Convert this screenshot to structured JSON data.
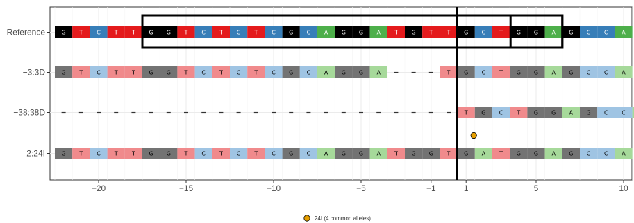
{
  "chart_data": {
    "type": "sequence-alignment",
    "rows": [
      {
        "label": "Reference",
        "seq": "GTCTTGGTCTCTCGCAGGATGTTGCTGGAGCCA",
        "faded": false
      },
      {
        "label": "−3:3D",
        "seq": "GTCTTGGTCTCTCGCAGGA---TGCTGGAGCCA",
        "faded": true
      },
      {
        "label": "−38:38D",
        "seq": "-----------------------TGCTGGAGCCA",
        "faded": true
      },
      {
        "label": "2:24I",
        "seq": "GTCTTGGTCTCTCGCAGGATGGTGATGGAGCCA",
        "faded": true
      }
    ],
    "x_start": -22,
    "x_ticks": [
      -20,
      -15,
      -10,
      -5,
      -1,
      1,
      5,
      10
    ],
    "x_tick_labels": [
      "−20",
      "−15",
      "−10",
      "−5",
      "−1",
      "1",
      "5",
      "10"
    ],
    "cut_site": 0,
    "guide_box": {
      "from": -17,
      "to": 6
    },
    "pam_box": {
      "from": 4,
      "to": 6
    },
    "insertion_marker": {
      "row": "2:24I",
      "x": 0.5,
      "color": "#E69F00"
    },
    "colors": {
      "A": "#4DAF4A",
      "C": "#377EB8",
      "G": "#000000",
      "T": "#E41A1C",
      "gap": "#333333"
    },
    "faded_colors": {
      "A": "#A6D99A",
      "C": "#9FC4E3",
      "G": "#737373",
      "T": "#F08A8C"
    },
    "legend": {
      "label": "24I (4 common alleles)",
      "position": "bottom"
    }
  }
}
